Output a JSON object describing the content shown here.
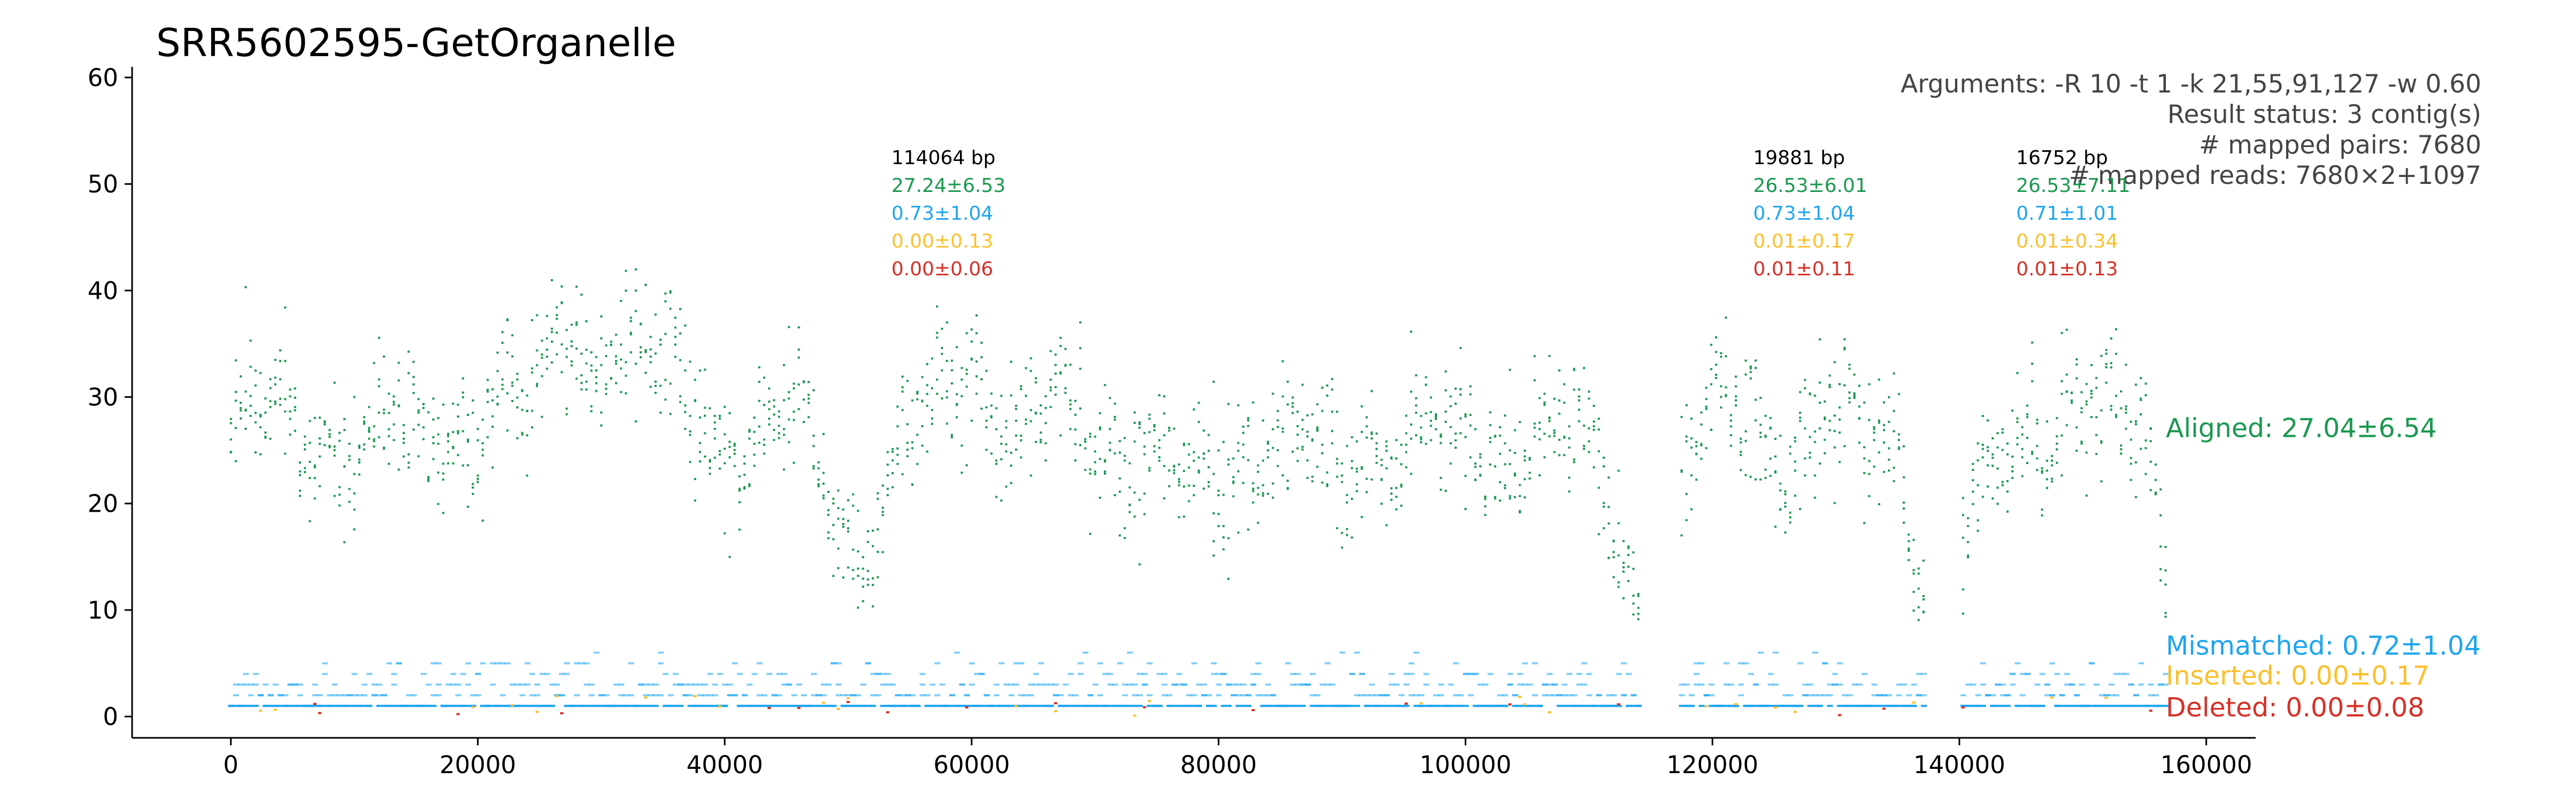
{
  "chart_data": {
    "type": "scatter",
    "title": "SRR5602595-GetOrganelle",
    "xlabel": "",
    "ylabel": "",
    "xlim": [
      -8000,
      164000
    ],
    "ylim": [
      -2,
      61
    ],
    "x_ticks": [
      "0",
      "20000",
      "40000",
      "60000",
      "80000",
      "100000",
      "120000",
      "140000",
      "160000"
    ],
    "y_ticks": [
      "0",
      "10",
      "20",
      "30",
      "40",
      "50",
      "60"
    ],
    "x_tick_values": [
      0,
      20000,
      40000,
      60000,
      80000,
      100000,
      120000,
      140000,
      160000
    ],
    "y_tick_values": [
      0,
      10,
      20,
      30,
      40,
      50,
      60
    ],
    "grid": false,
    "info_lines": [
      "Arguments: -R 10 -t 1 -k 21,55,91,127 -w 0.60",
      "Result status: 3 contig(s)",
      "# mapped pairs: 7680",
      "# mapped reads: 7680×2+1097"
    ],
    "series": [
      {
        "name": "Aligned: 27.04±6.54",
        "color": "#1a9850"
      },
      {
        "name": "Mismatched: 0.72±1.04",
        "color": "#1ea5f0"
      },
      {
        "name": "Inserted: 0.00±0.17",
        "color": "#fbc02d"
      },
      {
        "name": "Deleted: 0.00±0.08",
        "color": "#d73027"
      }
    ],
    "contigs": [
      {
        "start": 0,
        "end": 114064,
        "label_x": 53500,
        "lines": [
          "114064 bp",
          "27.24±6.53",
          "0.73±1.04",
          "0.00±0.13",
          "0.00±0.06"
        ],
        "aligned_profile": [
          [
            0,
            26
          ],
          [
            3000,
            28
          ],
          [
            6000,
            27
          ],
          [
            9000,
            26
          ],
          [
            12000,
            25
          ],
          [
            15000,
            26
          ],
          [
            18000,
            28
          ],
          [
            21000,
            30
          ],
          [
            24000,
            28
          ],
          [
            27000,
            37
          ],
          [
            30000,
            36
          ],
          [
            33000,
            35
          ],
          [
            36000,
            30
          ],
          [
            39000,
            28
          ],
          [
            42000,
            26
          ],
          [
            45000,
            27
          ],
          [
            48000,
            22
          ],
          [
            51000,
            16
          ],
          [
            54000,
            24
          ],
          [
            57000,
            28
          ],
          [
            60000,
            35
          ],
          [
            63000,
            26
          ],
          [
            66000,
            28
          ],
          [
            69000,
            27
          ],
          [
            72000,
            26
          ],
          [
            75000,
            24
          ],
          [
            78000,
            20
          ],
          [
            81000,
            24
          ],
          [
            84000,
            27
          ],
          [
            87000,
            25
          ],
          [
            90000,
            22
          ],
          [
            93000,
            26
          ],
          [
            96000,
            27
          ],
          [
            99000,
            24
          ],
          [
            102000,
            25
          ],
          [
            105000,
            28
          ],
          [
            108000,
            26
          ],
          [
            111000,
            22
          ],
          [
            114000,
            10
          ]
        ]
      },
      {
        "start": 117500,
        "end": 137200,
        "label_x": 123300,
        "lines": [
          "19881 bp",
          "26.53±6.01",
          "0.73±1.04",
          "0.01±0.17",
          "0.01±0.11"
        ],
        "aligned_profile": [
          [
            117500,
            22
          ],
          [
            120000,
            27
          ],
          [
            123000,
            28
          ],
          [
            126000,
            26
          ],
          [
            129000,
            27
          ],
          [
            132000,
            26
          ],
          [
            135000,
            27
          ],
          [
            137200,
            12
          ]
        ]
      },
      {
        "start": 140300,
        "end": 157000,
        "label_x": 144600,
        "lines": [
          "16752 bp",
          "26.53±7.11",
          "0.71±1.01",
          "0.01±0.34",
          "0.01±0.13"
        ],
        "aligned_profile": [
          [
            140300,
            14
          ],
          [
            143000,
            24
          ],
          [
            146000,
            28
          ],
          [
            149000,
            30
          ],
          [
            152000,
            27
          ],
          [
            155000,
            28
          ],
          [
            157000,
            15
          ]
        ]
      }
    ]
  }
}
